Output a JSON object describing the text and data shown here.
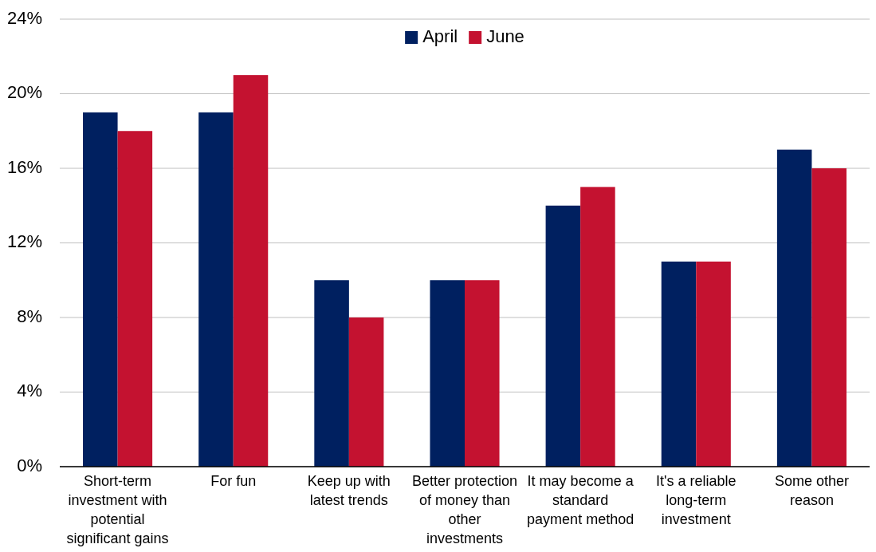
{
  "chart_data": {
    "type": "bar",
    "categories": [
      "Short-term investment with potential significant gains",
      "For fun",
      "Keep up with latest trends",
      "Better protection of money than other investments",
      "It may become a standard payment method",
      "It's a reliable long-term investment",
      "Some other reason"
    ],
    "series": [
      {
        "name": "April",
        "color": "#002060",
        "values": [
          19,
          19,
          10,
          10,
          14,
          11,
          17
        ]
      },
      {
        "name": "June",
        "color": "#c41230",
        "values": [
          18,
          21,
          8,
          10,
          15,
          11,
          16
        ]
      }
    ],
    "ylim": [
      0,
      24
    ],
    "yticks": [
      {
        "value": 0,
        "label": "0%"
      },
      {
        "value": 4,
        "label": "4%"
      },
      {
        "value": 8,
        "label": "8%"
      },
      {
        "value": 12,
        "label": "12%"
      },
      {
        "value": 16,
        "label": "16%"
      },
      {
        "value": 20,
        "label": "20%"
      },
      {
        "value": 24,
        "label": "24%"
      }
    ],
    "grid": "y",
    "legend": "top"
  }
}
